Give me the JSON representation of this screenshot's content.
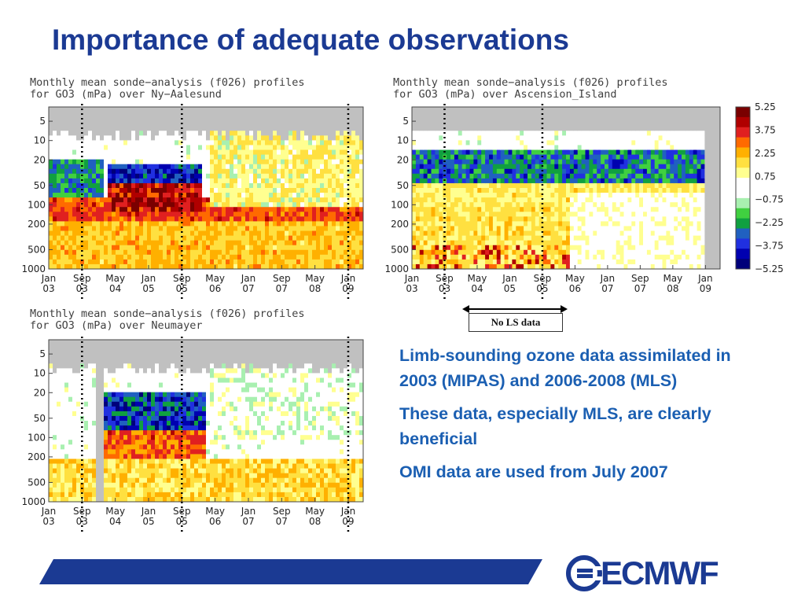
{
  "slide": {
    "title": "Importance of adequate observations",
    "no_ls_label": "No LS data",
    "bullets": [
      "Limb-sounding ozone data assimilated in 2003 (MIPAS) and 2006-2008 (MLS)",
      "These data, especially MLS, are clearly beneficial",
      "OMI data are used from July 2007"
    ],
    "logo_text": "ECMWF"
  },
  "colors": {
    "title": "#1b3a93",
    "bullets": "#1b5fb2",
    "bar": "#1b3a93",
    "missing": "#c0c0c0"
  },
  "chart_data": [
    {
      "type": "heatmap",
      "title": "Monthly mean sonde−analysis (f026) profiles",
      "subtitle": "for GO3 (mPa) over Ny−Aalesund",
      "yticks": [
        "5",
        "10",
        "20",
        "50",
        "100",
        "200",
        "500",
        "1000"
      ],
      "xticks": [
        [
          "Jan",
          "03"
        ],
        [
          "Sep",
          "03"
        ],
        [
          "May",
          "04"
        ],
        [
          "Jan",
          "05"
        ],
        [
          "Sep",
          "05"
        ],
        [
          "May",
          "06"
        ],
        [
          "Jan",
          "07"
        ],
        [
          "Sep",
          "07"
        ],
        [
          "May",
          "08"
        ],
        [
          "Jan",
          "09"
        ]
      ],
      "yscale": "log",
      "ylim": [
        1000,
        3
      ],
      "grid": false,
      "dotted_separators": [
        "Sep 03",
        "Sep 05",
        "Jan 09"
      ]
    },
    {
      "type": "heatmap",
      "title": "Monthly mean sonde−analysis (f026) profiles",
      "subtitle": "for GO3 (mPa) over Ascension_Island",
      "yticks": [
        "5",
        "10",
        "20",
        "50",
        "100",
        "200",
        "500",
        "1000"
      ],
      "xticks": [
        [
          "Jan",
          "03"
        ],
        [
          "Sep",
          "03"
        ],
        [
          "May",
          "04"
        ],
        [
          "Jan",
          "05"
        ],
        [
          "Sep",
          "05"
        ],
        [
          "May",
          "06"
        ],
        [
          "Jan",
          "07"
        ],
        [
          "Sep",
          "07"
        ],
        [
          "May",
          "08"
        ],
        [
          "Jan",
          "09"
        ]
      ],
      "yscale": "log",
      "ylim": [
        1000,
        3
      ],
      "grid": false,
      "dotted_separators": [
        "Sep 03",
        "Sep 05"
      ],
      "colorbar": {
        "labels": [
          "5.25",
          "3.75",
          "2.25",
          "0.75",
          "−0.75",
          "−2.25",
          "−3.75",
          "−5.25"
        ],
        "colors": [
          "#7a0000",
          "#b00000",
          "#e02020",
          "#ff6a00",
          "#ffb000",
          "#ffe040",
          "#ffff90",
          "#ffffff",
          "#ffffff",
          "#a8f0b0",
          "#40d040",
          "#10a040",
          "#2060c0",
          "#2030e0",
          "#0000b0",
          "#00007a"
        ]
      }
    },
    {
      "type": "heatmap",
      "title": "Monthly mean sonde−analysis (f026) profiles",
      "subtitle": "for GO3 (mPa) over Neumayer",
      "yticks": [
        "5",
        "10",
        "20",
        "50",
        "100",
        "200",
        "500",
        "1000"
      ],
      "xticks": [
        [
          "Jan",
          "03"
        ],
        [
          "Sep",
          "03"
        ],
        [
          "May",
          "04"
        ],
        [
          "Jan",
          "05"
        ],
        [
          "Sep",
          "05"
        ],
        [
          "May",
          "06"
        ],
        [
          "Jan",
          "07"
        ],
        [
          "Sep",
          "07"
        ],
        [
          "May",
          "08"
        ],
        [
          "Jan",
          "09"
        ]
      ],
      "yscale": "log",
      "ylim": [
        1000,
        3
      ],
      "grid": false,
      "dotted_separators": [
        "Sep 03",
        "Sep 05",
        "Jan 09"
      ]
    }
  ]
}
